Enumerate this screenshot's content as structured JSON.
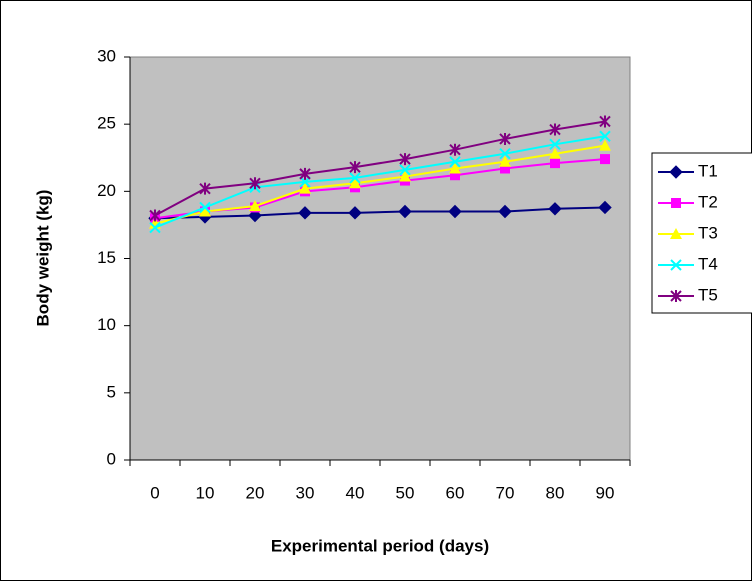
{
  "chart_data": {
    "type": "line",
    "x_label": "Experimental period (days)",
    "y_label": "Body weight (kg)",
    "categories": [
      "0",
      "10",
      "20",
      "30",
      "40",
      "50",
      "60",
      "70",
      "80",
      "90"
    ],
    "series": [
      {
        "name": "T1",
        "color": "#000080",
        "marker": "diamond",
        "values": [
          18.0,
          18.1,
          18.2,
          18.4,
          18.4,
          18.5,
          18.5,
          18.5,
          18.7,
          18.8
        ]
      },
      {
        "name": "T2",
        "color": "#ff00ff",
        "marker": "square",
        "values": [
          18.0,
          18.5,
          18.8,
          20.0,
          20.3,
          20.8,
          21.2,
          21.7,
          22.1,
          22.4
        ]
      },
      {
        "name": "T3",
        "color": "#ffff00",
        "marker": "triangle",
        "values": [
          17.6,
          18.5,
          18.9,
          20.2,
          20.6,
          21.1,
          21.7,
          22.2,
          22.8,
          23.4
        ]
      },
      {
        "name": "T4",
        "color": "#00ffff",
        "marker": "cross",
        "values": [
          17.3,
          18.8,
          20.3,
          20.7,
          21.0,
          21.6,
          22.2,
          22.8,
          23.5,
          24.1
        ]
      },
      {
        "name": "T5",
        "color": "#800080",
        "marker": "star",
        "values": [
          18.2,
          20.2,
          20.6,
          21.3,
          21.8,
          22.4,
          23.1,
          23.9,
          24.6,
          25.2
        ]
      }
    ],
    "ylim": [
      0,
      30
    ],
    "yticks": [
      0,
      5,
      10,
      15,
      20,
      25,
      30
    ],
    "plot_background": "#c0c0c0",
    "legend": "right"
  }
}
